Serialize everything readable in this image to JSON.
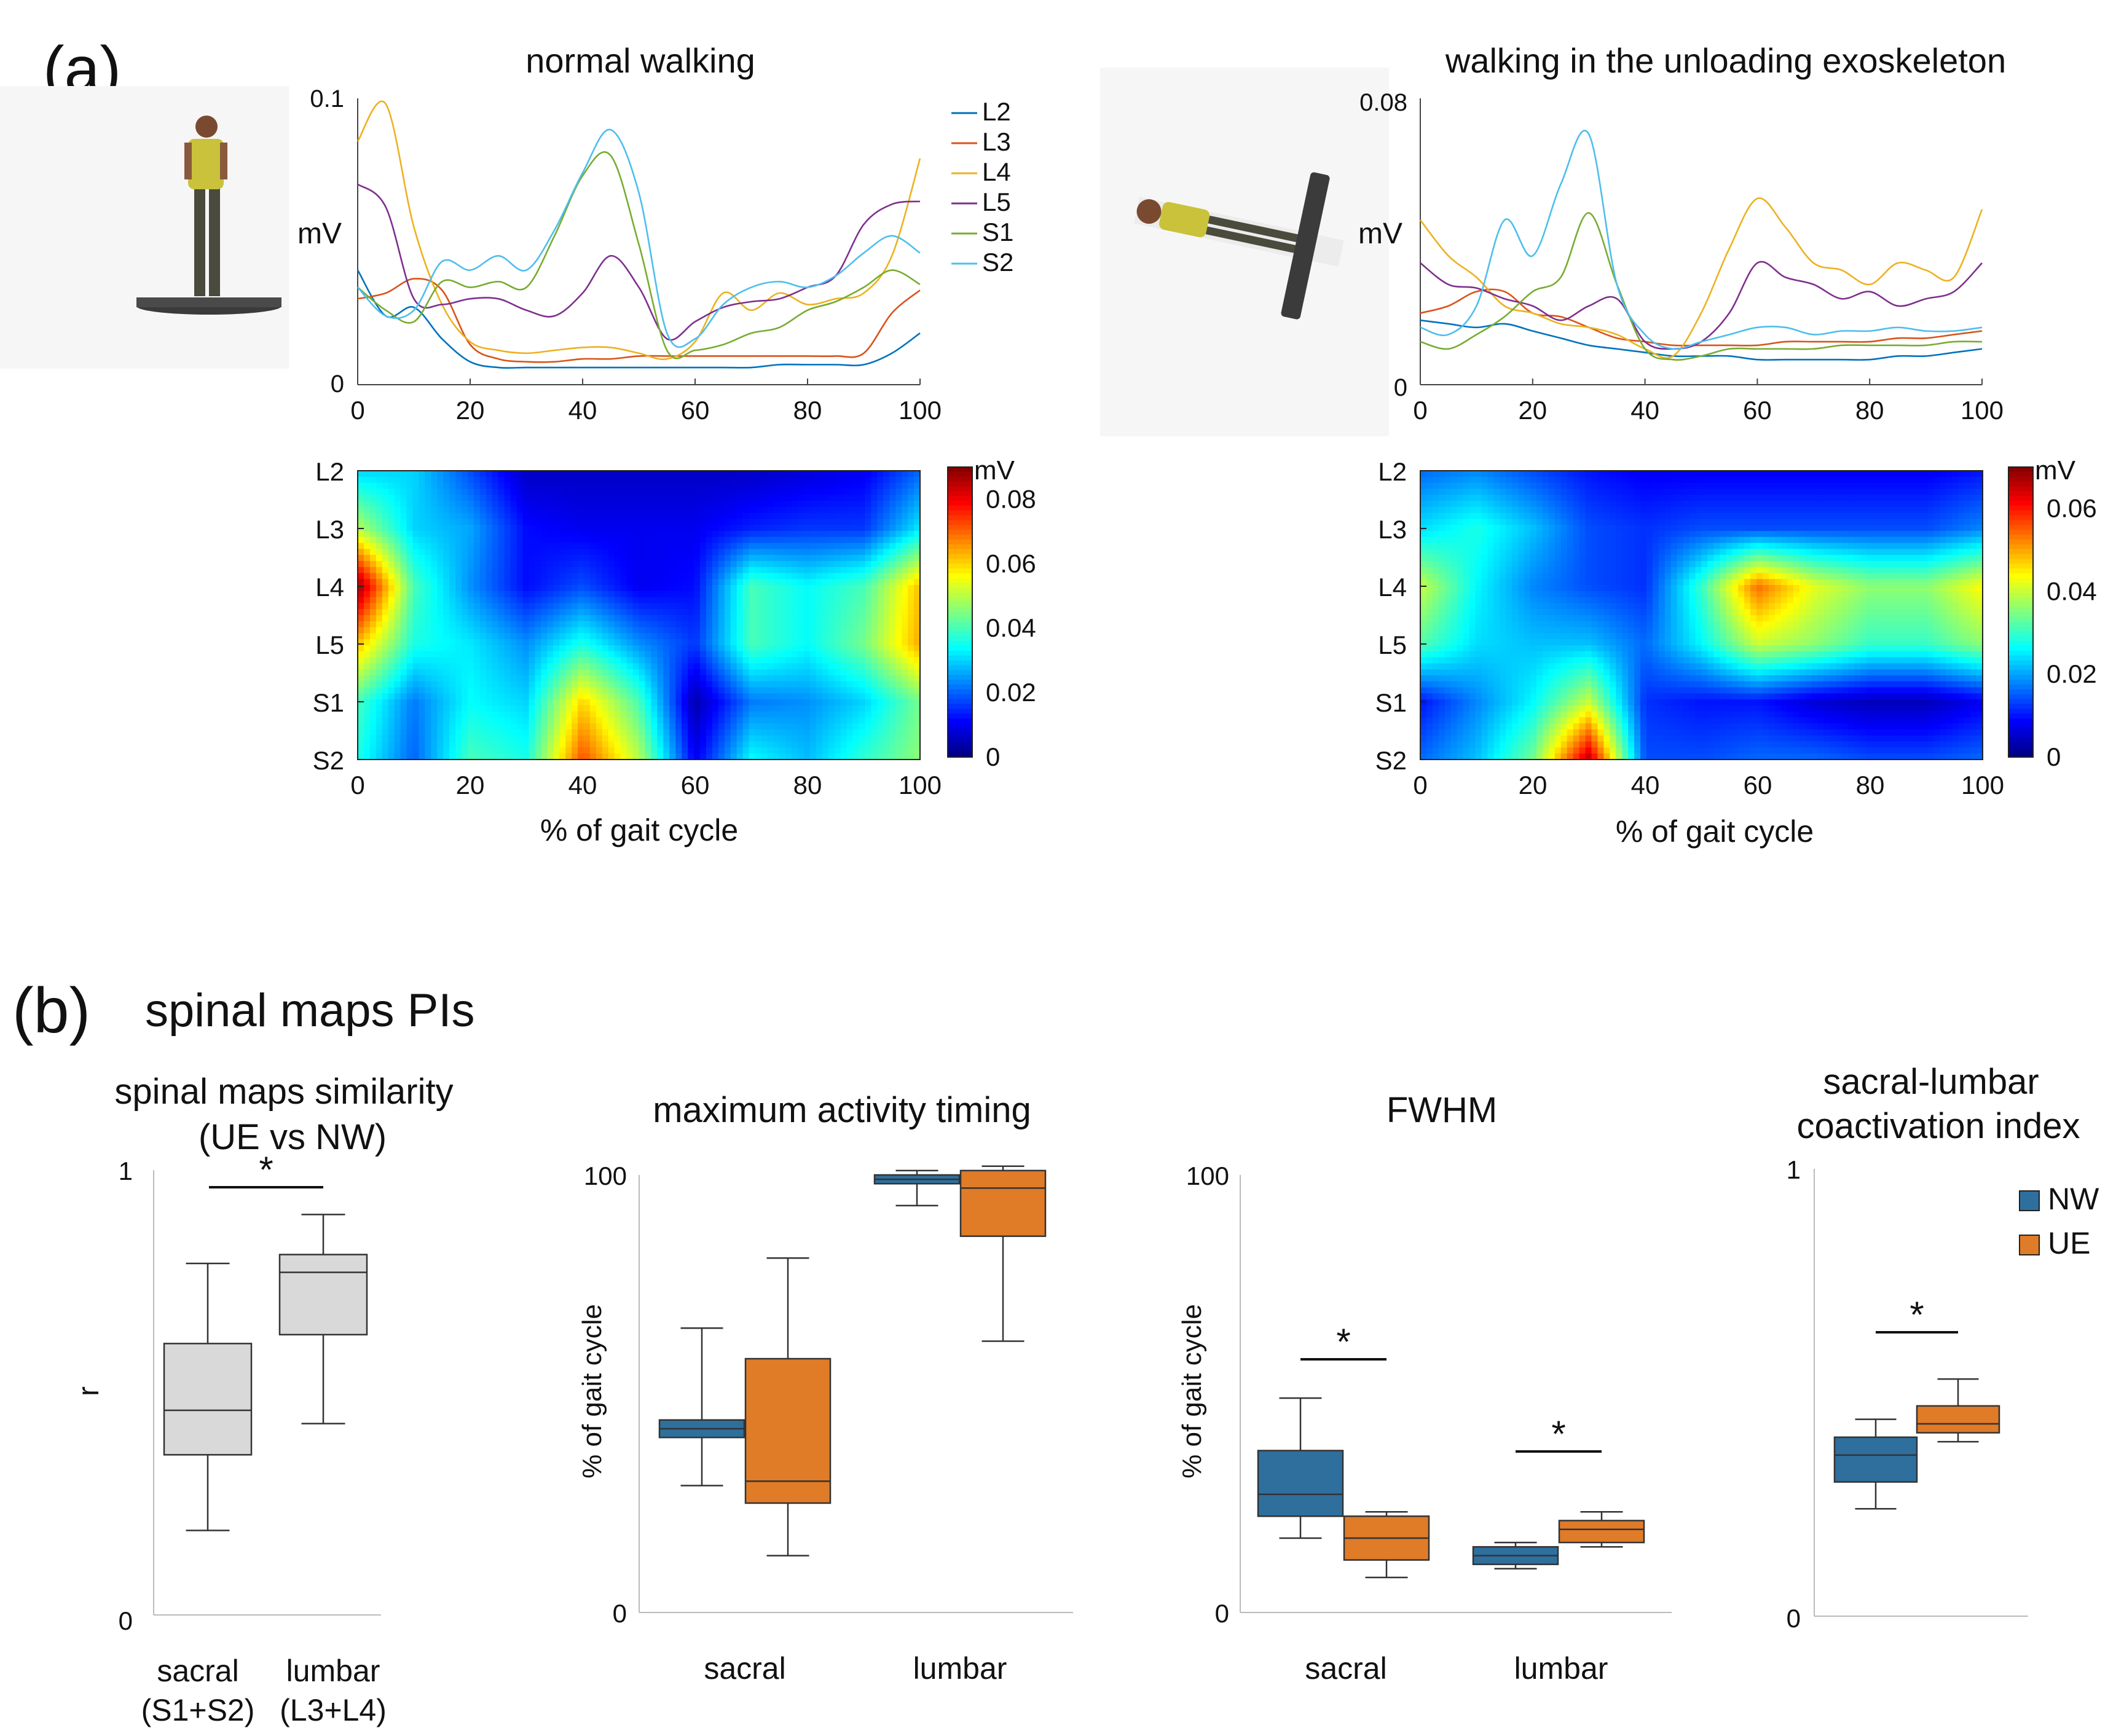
{
  "panel_a": {
    "label": "(a)",
    "left": {
      "title": "normal walking",
      "line_ylabel": "mV",
      "line_yticks": [
        "0.1",
        "0"
      ],
      "xticks": [
        "0",
        "20",
        "40",
        "60",
        "80",
        "100"
      ],
      "map_xlabel": "% of gait cycle",
      "rows": [
        "L2",
        "L3",
        "L4",
        "L5",
        "S1",
        "S2"
      ],
      "colorbar_unit": "mV",
      "colorbar_ticks": [
        "0.08",
        "0.06",
        "0.04",
        "0.02",
        "0"
      ],
      "legend": [
        "L2",
        "L3",
        "L4",
        "L5",
        "S1",
        "S2"
      ]
    },
    "right": {
      "title": "walking  in  the  unloading  exoskeleton",
      "line_ylabel": "mV",
      "line_yticks": [
        "0.08",
        "0"
      ],
      "xticks": [
        "0",
        "20",
        "40",
        "60",
        "80",
        "100"
      ],
      "map_xlabel": "% of gait cycle",
      "rows": [
        "L2",
        "L3",
        "L4",
        "L5",
        "S1",
        "S2"
      ],
      "colorbar_unit": "mV",
      "colorbar_ticks": [
        "0.06",
        "0.04",
        "0.02",
        "0"
      ]
    }
  },
  "panel_b": {
    "label": "(b)",
    "title": "spinal maps PIs",
    "legend": [
      "NW",
      "UE"
    ],
    "colors": {
      "NW": "#2e6f9e",
      "UE": "#e07b28",
      "gray": "#d9d9d9"
    },
    "plots": [
      {
        "title": "spinal maps similarity",
        "subtitle": "(UE vs NW)",
        "ylabel": "r",
        "yticks": [
          "1",
          "0"
        ],
        "xlabels": [
          "sacral",
          "lumbar"
        ],
        "xsub": [
          "(S1+S2)",
          "(L3+L4)"
        ]
      },
      {
        "title": "maximum  activity  timing",
        "ylabel": "% of gait cycle",
        "yticks": [
          "100",
          "0"
        ],
        "xlabels": [
          "sacral",
          "lumbar"
        ]
      },
      {
        "title": "FWHM",
        "ylabel": "% of gait cycle",
        "yticks": [
          "100",
          "0"
        ],
        "xlabels": [
          "sacral",
          "lumbar"
        ]
      },
      {
        "title": "sacral-lumbar",
        "subtitle": "coactivation index",
        "yticks": [
          "1",
          "0"
        ]
      }
    ],
    "star": "*"
  },
  "chart_data": [
    {
      "type": "line",
      "title": "normal walking",
      "xlabel": "% of gait cycle",
      "ylabel": "mV",
      "xlim": [
        0,
        100
      ],
      "ylim": [
        0,
        0.1
      ],
      "x": [
        0,
        5,
        10,
        15,
        20,
        25,
        30,
        35,
        40,
        45,
        50,
        55,
        60,
        65,
        70,
        75,
        80,
        85,
        90,
        95,
        100
      ],
      "series": [
        {
          "name": "L2",
          "color": "#0072bd",
          "values": [
            0.04,
            0.024,
            0.027,
            0.016,
            0.008,
            0.006,
            0.006,
            0.006,
            0.006,
            0.006,
            0.006,
            0.006,
            0.006,
            0.006,
            0.006,
            0.007,
            0.007,
            0.007,
            0.007,
            0.011,
            0.018
          ]
        },
        {
          "name": "L3",
          "color": "#d95319",
          "values": [
            0.03,
            0.032,
            0.037,
            0.033,
            0.014,
            0.009,
            0.008,
            0.008,
            0.009,
            0.009,
            0.01,
            0.01,
            0.01,
            0.01,
            0.01,
            0.01,
            0.01,
            0.01,
            0.011,
            0.025,
            0.033
          ]
        },
        {
          "name": "L4",
          "color": "#edb120",
          "values": [
            0.085,
            0.098,
            0.055,
            0.028,
            0.015,
            0.012,
            0.011,
            0.012,
            0.013,
            0.013,
            0.011,
            0.009,
            0.015,
            0.032,
            0.026,
            0.032,
            0.028,
            0.03,
            0.032,
            0.045,
            0.079
          ]
        },
        {
          "name": "L5",
          "color": "#7e2f8e",
          "values": [
            0.07,
            0.062,
            0.03,
            0.028,
            0.03,
            0.03,
            0.026,
            0.024,
            0.032,
            0.045,
            0.034,
            0.016,
            0.022,
            0.027,
            0.029,
            0.03,
            0.034,
            0.038,
            0.056,
            0.063,
            0.064
          ]
        },
        {
          "name": "S1",
          "color": "#77ac30",
          "values": [
            0.034,
            0.026,
            0.022,
            0.036,
            0.034,
            0.036,
            0.034,
            0.052,
            0.073,
            0.08,
            0.049,
            0.012,
            0.012,
            0.014,
            0.018,
            0.02,
            0.026,
            0.029,
            0.034,
            0.04,
            0.035
          ]
        },
        {
          "name": "S2",
          "color": "#4dbeee",
          "values": [
            0.034,
            0.024,
            0.026,
            0.043,
            0.04,
            0.045,
            0.04,
            0.054,
            0.074,
            0.089,
            0.067,
            0.018,
            0.016,
            0.028,
            0.034,
            0.036,
            0.034,
            0.038,
            0.046,
            0.052,
            0.046
          ]
        }
      ]
    },
    {
      "type": "line",
      "title": "walking  in  the  unloading  exoskeleton",
      "xlabel": "% of gait cycle",
      "ylabel": "mV",
      "xlim": [
        0,
        100
      ],
      "ylim": [
        0,
        0.08
      ],
      "x": [
        0,
        5,
        10,
        15,
        20,
        25,
        30,
        35,
        40,
        45,
        50,
        55,
        60,
        65,
        70,
        75,
        80,
        85,
        90,
        95,
        100
      ],
      "series": [
        {
          "name": "L2",
          "color": "#0072bd",
          "values": [
            0.018,
            0.017,
            0.016,
            0.017,
            0.015,
            0.013,
            0.011,
            0.01,
            0.009,
            0.008,
            0.008,
            0.008,
            0.007,
            0.007,
            0.007,
            0.007,
            0.007,
            0.008,
            0.008,
            0.009,
            0.01
          ]
        },
        {
          "name": "L3",
          "color": "#d95319",
          "values": [
            0.02,
            0.022,
            0.026,
            0.026,
            0.02,
            0.019,
            0.016,
            0.013,
            0.012,
            0.011,
            0.011,
            0.011,
            0.011,
            0.012,
            0.012,
            0.012,
            0.012,
            0.013,
            0.013,
            0.014,
            0.015
          ]
        },
        {
          "name": "L4",
          "color": "#edb120",
          "values": [
            0.046,
            0.036,
            0.03,
            0.022,
            0.02,
            0.017,
            0.016,
            0.014,
            0.01,
            0.008,
            0.02,
            0.038,
            0.052,
            0.044,
            0.034,
            0.032,
            0.028,
            0.034,
            0.032,
            0.03,
            0.049
          ]
        },
        {
          "name": "L5",
          "color": "#7e2f8e",
          "values": [
            0.034,
            0.028,
            0.027,
            0.024,
            0.022,
            0.018,
            0.022,
            0.024,
            0.012,
            0.01,
            0.012,
            0.02,
            0.034,
            0.03,
            0.028,
            0.024,
            0.026,
            0.022,
            0.024,
            0.026,
            0.034
          ]
        },
        {
          "name": "S1",
          "color": "#77ac30",
          "values": [
            0.012,
            0.01,
            0.014,
            0.019,
            0.026,
            0.03,
            0.048,
            0.028,
            0.01,
            0.007,
            0.008,
            0.01,
            0.01,
            0.01,
            0.01,
            0.011,
            0.011,
            0.011,
            0.011,
            0.012,
            0.012
          ]
        },
        {
          "name": "S2",
          "color": "#4dbeee",
          "values": [
            0.016,
            0.014,
            0.022,
            0.046,
            0.036,
            0.056,
            0.07,
            0.028,
            0.014,
            0.01,
            0.012,
            0.014,
            0.016,
            0.016,
            0.014,
            0.015,
            0.015,
            0.016,
            0.015,
            0.015,
            0.016
          ]
        }
      ]
    },
    {
      "type": "heatmap",
      "title": "normal walking",
      "xlabel": "% of gait cycle",
      "rows": [
        "L2",
        "L3",
        "L4",
        "L5",
        "S1",
        "S2"
      ],
      "x": [
        0,
        10,
        20,
        30,
        40,
        50,
        60,
        70,
        80,
        90,
        100
      ],
      "clim": [
        0,
        0.09
      ],
      "values": [
        [
          0.03,
          0.03,
          0.018,
          0.006,
          0.006,
          0.006,
          0.006,
          0.006,
          0.008,
          0.01,
          0.02
        ],
        [
          0.05,
          0.03,
          0.026,
          0.012,
          0.01,
          0.01,
          0.01,
          0.014,
          0.016,
          0.016,
          0.032
        ],
        [
          0.088,
          0.04,
          0.024,
          0.012,
          0.018,
          0.01,
          0.012,
          0.04,
          0.034,
          0.04,
          0.062
        ],
        [
          0.062,
          0.036,
          0.032,
          0.024,
          0.036,
          0.024,
          0.016,
          0.04,
          0.034,
          0.044,
          0.064
        ],
        [
          0.04,
          0.022,
          0.034,
          0.03,
          0.06,
          0.04,
          0.004,
          0.022,
          0.024,
          0.03,
          0.044
        ],
        [
          0.036,
          0.02,
          0.04,
          0.036,
          0.072,
          0.05,
          0.01,
          0.034,
          0.028,
          0.038,
          0.046
        ]
      ]
    },
    {
      "type": "heatmap",
      "title": "walking  in  the  unloading  exoskeleton",
      "xlabel": "% of gait cycle",
      "rows": [
        "L2",
        "L3",
        "L4",
        "L5",
        "S1",
        "S2"
      ],
      "x": [
        0,
        10,
        20,
        30,
        40,
        50,
        60,
        70,
        80,
        90,
        100
      ],
      "clim": [
        0,
        0.07
      ],
      "values": [
        [
          0.016,
          0.018,
          0.014,
          0.01,
          0.008,
          0.008,
          0.008,
          0.008,
          0.008,
          0.008,
          0.01
        ],
        [
          0.024,
          0.028,
          0.022,
          0.014,
          0.012,
          0.014,
          0.014,
          0.014,
          0.014,
          0.014,
          0.018
        ],
        [
          0.04,
          0.026,
          0.018,
          0.014,
          0.012,
          0.03,
          0.054,
          0.042,
          0.036,
          0.036,
          0.044
        ],
        [
          0.032,
          0.024,
          0.022,
          0.022,
          0.016,
          0.026,
          0.04,
          0.036,
          0.03,
          0.03,
          0.036
        ],
        [
          0.01,
          0.018,
          0.026,
          0.04,
          0.012,
          0.01,
          0.01,
          0.006,
          0.004,
          0.004,
          0.008
        ],
        [
          0.016,
          0.022,
          0.034,
          0.066,
          0.014,
          0.014,
          0.016,
          0.016,
          0.014,
          0.014,
          0.016
        ]
      ]
    },
    {
      "type": "box",
      "title": "spinal maps similarity (UE vs NW)",
      "ylabel": "r",
      "ylim": [
        0,
        1
      ],
      "categories": [
        "sacral (S1+S2)",
        "lumbar (L3+L4)"
      ],
      "series": [
        {
          "name": "UE vs NW",
          "boxes": [
            {
              "min": 0.19,
              "q1": 0.36,
              "median": 0.46,
              "q3": 0.61,
              "max": 0.79
            },
            {
              "min": 0.43,
              "q1": 0.63,
              "median": 0.77,
              "q3": 0.81,
              "max": 0.9
            }
          ]
        }
      ],
      "significance": [
        {
          "between": [
            "sacral",
            "lumbar"
          ],
          "label": "*"
        }
      ]
    },
    {
      "type": "box",
      "title": "maximum  activity  timing",
      "ylabel": "% of gait cycle",
      "ylim": [
        0,
        100
      ],
      "categories": [
        "sacral",
        "lumbar"
      ],
      "series": [
        {
          "name": "NW",
          "boxes": [
            {
              "min": 29,
              "q1": 40,
              "median": 42,
              "q3": 44,
              "max": 65
            },
            {
              "min": 93,
              "q1": 98,
              "median": 99,
              "q3": 100,
              "max": 101
            }
          ]
        },
        {
          "name": "UE",
          "boxes": [
            {
              "min": 13,
              "q1": 25,
              "median": 30,
              "q3": 58,
              "max": 81
            },
            {
              "min": 62,
              "q1": 86,
              "median": 97,
              "q3": 101,
              "max": 102
            }
          ]
        }
      ]
    },
    {
      "type": "box",
      "title": "FWHM",
      "ylabel": "% of gait cycle",
      "ylim": [
        0,
        100
      ],
      "categories": [
        "sacral",
        "lumbar"
      ],
      "series": [
        {
          "name": "NW",
          "boxes": [
            {
              "min": 17,
              "q1": 22,
              "median": 27,
              "q3": 37,
              "max": 49
            },
            {
              "min": 10,
              "q1": 11,
              "median": 13,
              "q3": 15,
              "max": 16
            }
          ]
        },
        {
          "name": "UE",
          "boxes": [
            {
              "min": 8,
              "q1": 12,
              "median": 17,
              "q3": 22,
              "max": 23
            },
            {
              "min": 15,
              "q1": 16,
              "median": 19,
              "q3": 21,
              "max": 23
            }
          ]
        }
      ],
      "significance": [
        {
          "between": [
            "NW",
            "UE"
          ],
          "group": "sacral",
          "label": "*"
        },
        {
          "between": [
            "NW",
            "UE"
          ],
          "group": "lumbar",
          "label": "*"
        }
      ]
    },
    {
      "type": "box",
      "title": "sacral-lumbar coactivation index",
      "ylim": [
        0,
        1
      ],
      "categories": [
        ""
      ],
      "series": [
        {
          "name": "NW",
          "boxes": [
            {
              "min": 0.24,
              "q1": 0.3,
              "median": 0.36,
              "q3": 0.4,
              "max": 0.44
            }
          ]
        },
        {
          "name": "UE",
          "boxes": [
            {
              "min": 0.39,
              "q1": 0.41,
              "median": 0.43,
              "q3": 0.47,
              "max": 0.53
            }
          ]
        }
      ],
      "significance": [
        {
          "between": [
            "NW",
            "UE"
          ],
          "label": "*"
        }
      ]
    }
  ]
}
